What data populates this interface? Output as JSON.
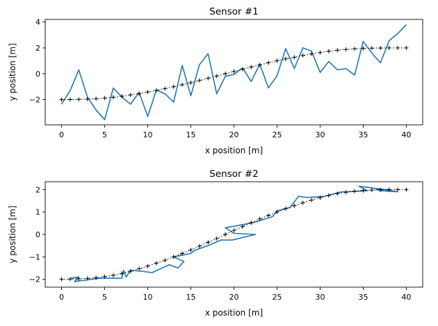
{
  "chart_data": [
    {
      "type": "line",
      "title": "Sensor #1",
      "xlabel": "x position [m]",
      "ylabel": "y position [m]",
      "xlim": [
        -1.9,
        41.9
      ],
      "ylim": [
        -3.95,
        4.2
      ],
      "xticks": [
        0,
        5,
        10,
        15,
        20,
        25,
        30,
        35,
        40
      ],
      "yticks": [
        -2,
        0,
        2,
        4
      ],
      "grid": false,
      "series": [
        {
          "color": "#1f77b4",
          "style": "solid",
          "x": [
            0,
            1,
            2,
            3,
            4,
            5,
            6,
            7,
            8,
            9,
            10,
            11,
            12,
            13,
            14,
            15,
            16,
            17,
            18,
            19,
            20,
            21,
            22,
            23,
            24,
            25,
            26,
            27,
            28,
            29,
            30,
            31,
            32,
            33,
            34,
            35,
            36,
            37,
            38,
            39,
            40
          ],
          "y": [
            -2.35,
            -1.3,
            0.3,
            -1.8,
            -2.8,
            -3.55,
            -1.1,
            -1.8,
            -2.35,
            -1.45,
            -3.3,
            -1.25,
            -1.55,
            -2.2,
            0.65,
            -1.7,
            0.7,
            1.55,
            -1.55,
            -0.2,
            -0.05,
            0.45,
            -0.6,
            0.75,
            -1.1,
            -0.15,
            1.95,
            0.4,
            2.0,
            1.75,
            0.1,
            0.95,
            0.3,
            0.4,
            -0.1,
            2.5,
            1.6,
            0.85,
            2.55,
            3.1,
            3.8
          ]
        },
        {
          "color": "#000000",
          "style": "dotted-plus",
          "x": [
            0,
            1,
            2,
            3,
            4,
            5,
            6,
            7,
            8,
            9,
            10,
            11,
            12,
            13,
            14,
            15,
            16,
            17,
            18,
            19,
            20,
            21,
            22,
            23,
            24,
            25,
            26,
            27,
            28,
            29,
            30,
            31,
            32,
            33,
            34,
            35,
            36,
            37,
            38,
            39,
            40
          ],
          "y": [
            -2.0,
            -1.99,
            -1.98,
            -1.96,
            -1.93,
            -1.88,
            -1.82,
            -1.74,
            -1.64,
            -1.53,
            -1.41,
            -1.28,
            -1.15,
            -1.0,
            -0.85,
            -0.69,
            -0.52,
            -0.35,
            -0.18,
            0.0,
            0.18,
            0.35,
            0.52,
            0.69,
            0.85,
            1.0,
            1.15,
            1.28,
            1.41,
            1.53,
            1.64,
            1.74,
            1.82,
            1.88,
            1.93,
            1.96,
            1.98,
            1.99,
            2.0,
            2.0,
            2.0
          ]
        }
      ]
    },
    {
      "type": "line",
      "title": "Sensor #2",
      "xlabel": "x position [m]",
      "ylabel": "y position [m]",
      "xlim": [
        -1.9,
        41.9
      ],
      "ylim": [
        -2.35,
        2.35
      ],
      "xticks": [
        0,
        5,
        10,
        15,
        20,
        25,
        30,
        35,
        40
      ],
      "yticks": [
        -2,
        -1,
        0,
        1,
        2
      ],
      "grid": false,
      "series": [
        {
          "color": "#1f77b4",
          "style": "solid",
          "x": [
            1.1,
            2.0,
            1.5,
            4.5,
            7.0,
            7.2,
            7.5,
            8.0,
            9.5,
            10.5,
            12.5,
            13.5,
            14.2,
            13.0,
            15.0,
            15.5,
            17.0,
            18.5,
            19.8,
            22.5,
            20.0,
            19.0,
            20.5,
            22.5,
            24.5,
            25.0,
            26.5,
            27.5,
            28.5,
            30.5,
            32.5,
            33.0,
            35.5,
            34.5,
            37.5,
            39.0,
            37.0,
            36.5,
            38.0
          ],
          "y": [
            -1.95,
            -1.9,
            -2.1,
            -1.95,
            -1.95,
            -1.6,
            -1.9,
            -1.6,
            -1.65,
            -1.7,
            -1.35,
            -1.5,
            -1.2,
            -1.0,
            -0.85,
            -0.7,
            -0.5,
            -0.25,
            -0.25,
            0.0,
            0.05,
            0.3,
            0.4,
            0.55,
            0.8,
            1.05,
            1.2,
            1.7,
            1.65,
            1.7,
            1.9,
            1.9,
            1.95,
            2.15,
            2.0,
            1.9,
            1.95,
            2.0,
            2.0
          ]
        },
        {
          "color": "#000000",
          "style": "dotted-plus",
          "x": [
            0,
            1,
            2,
            3,
            4,
            5,
            6,
            7,
            8,
            9,
            10,
            11,
            12,
            13,
            14,
            15,
            16,
            17,
            18,
            19,
            20,
            21,
            22,
            23,
            24,
            25,
            26,
            27,
            28,
            29,
            30,
            31,
            32,
            33,
            34,
            35,
            36,
            37,
            38,
            39,
            40
          ],
          "y": [
            -2.0,
            -1.99,
            -1.98,
            -1.96,
            -1.93,
            -1.88,
            -1.82,
            -1.74,
            -1.64,
            -1.53,
            -1.41,
            -1.28,
            -1.15,
            -1.0,
            -0.85,
            -0.69,
            -0.52,
            -0.35,
            -0.18,
            0.0,
            0.18,
            0.35,
            0.52,
            0.69,
            0.85,
            1.0,
            1.15,
            1.28,
            1.41,
            1.53,
            1.64,
            1.74,
            1.82,
            1.88,
            1.93,
            1.96,
            1.98,
            1.99,
            2.0,
            2.0,
            2.0
          ]
        }
      ]
    }
  ]
}
